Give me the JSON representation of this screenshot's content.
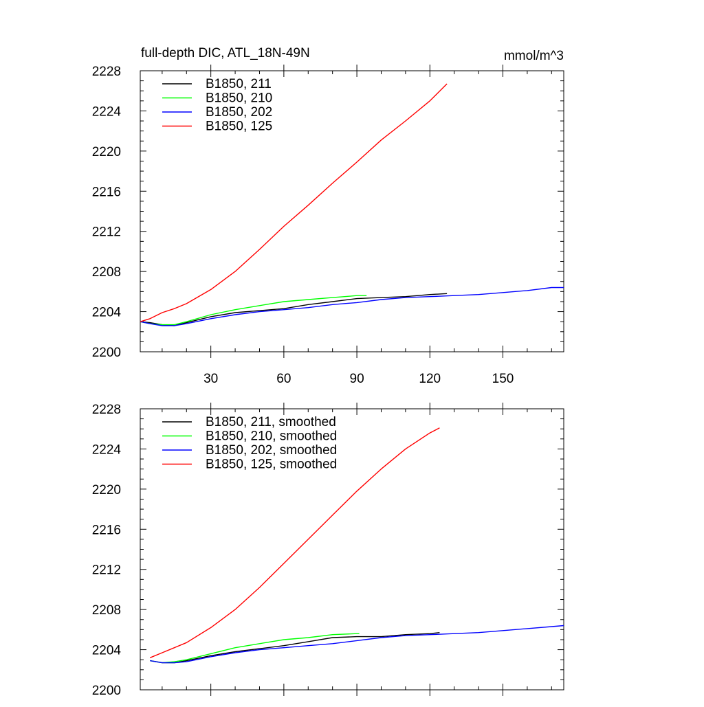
{
  "chart_data": [
    {
      "type": "line",
      "title": "full-depth DIC, ATL_18N-49N",
      "unit_label": "mmol/m^3",
      "xlabel": "",
      "ylabel": "",
      "xlim": [
        1,
        175
      ],
      "ylim": [
        2200,
        2228
      ],
      "x_ticks": [
        30,
        60,
        90,
        120,
        150
      ],
      "y_ticks": [
        2200,
        2204,
        2208,
        2212,
        2216,
        2220,
        2224,
        2228
      ],
      "legend_position": "top-left",
      "grid": false,
      "series": [
        {
          "name": "B1850, 211",
          "color": "#000000",
          "x": [
            1,
            5,
            10,
            15,
            20,
            30,
            40,
            50,
            60,
            70,
            80,
            90,
            100,
            110,
            120,
            127
          ],
          "y": [
            2203.0,
            2202.9,
            2202.7,
            2202.6,
            2202.9,
            2203.5,
            2203.9,
            2204.1,
            2204.3,
            2204.7,
            2205.0,
            2205.3,
            2205.4,
            2205.5,
            2205.7,
            2205.8
          ]
        },
        {
          "name": "B1850, 210",
          "color": "#00ff00",
          "x": [
            1,
            5,
            10,
            15,
            20,
            30,
            40,
            50,
            60,
            70,
            80,
            85,
            90,
            94
          ],
          "y": [
            2203.0,
            2202.8,
            2202.7,
            2202.7,
            2203.0,
            2203.7,
            2204.2,
            2204.6,
            2205.0,
            2205.2,
            2205.4,
            2205.5,
            2205.6,
            2205.6
          ]
        },
        {
          "name": "B1850, 202",
          "color": "#0000ff",
          "x": [
            1,
            5,
            10,
            15,
            20,
            30,
            40,
            50,
            60,
            70,
            80,
            90,
            100,
            110,
            120,
            130,
            140,
            150,
            160,
            170,
            175
          ],
          "y": [
            2203.0,
            2202.8,
            2202.6,
            2202.6,
            2202.8,
            2203.3,
            2203.7,
            2204.0,
            2204.2,
            2204.4,
            2204.7,
            2204.9,
            2205.2,
            2205.4,
            2205.5,
            2205.6,
            2205.7,
            2205.9,
            2206.1,
            2206.4,
            2206.4
          ]
        },
        {
          "name": "B1850, 125",
          "color": "#ff0000",
          "x": [
            1,
            5,
            10,
            15,
            20,
            30,
            40,
            50,
            60,
            70,
            80,
            90,
            100,
            110,
            120,
            127
          ],
          "y": [
            2203.0,
            2203.3,
            2203.9,
            2204.3,
            2204.8,
            2206.2,
            2208.0,
            2210.2,
            2212.5,
            2214.6,
            2216.8,
            2218.9,
            2221.1,
            2223.0,
            2225.0,
            2226.7
          ]
        }
      ]
    },
    {
      "type": "line",
      "title": "",
      "xlabel": "",
      "ylabel": "",
      "xlim": [
        1,
        175
      ],
      "ylim": [
        2200,
        2228
      ],
      "x_ticks": [
        30,
        60,
        90,
        120,
        150
      ],
      "y_ticks": [
        2200,
        2204,
        2208,
        2212,
        2216,
        2220,
        2224,
        2228
      ],
      "legend_position": "top-left",
      "grid": false,
      "series": [
        {
          "name": "B1850, 211, smoothed",
          "color": "#000000",
          "x": [
            5,
            10,
            15,
            20,
            30,
            40,
            50,
            60,
            70,
            80,
            90,
            100,
            110,
            120,
            124
          ],
          "y": [
            2202.9,
            2202.7,
            2202.7,
            2202.9,
            2203.4,
            2203.8,
            2204.1,
            2204.4,
            2204.8,
            2205.2,
            2205.3,
            2205.3,
            2205.5,
            2205.6,
            2205.7
          ]
        },
        {
          "name": "B1850, 210, smoothed",
          "color": "#00ff00",
          "x": [
            5,
            10,
            15,
            20,
            30,
            40,
            50,
            60,
            70,
            80,
            90,
            91
          ],
          "y": [
            2202.9,
            2202.7,
            2202.8,
            2203.0,
            2203.6,
            2204.2,
            2204.6,
            2205.0,
            2205.2,
            2205.5,
            2205.6,
            2205.6
          ]
        },
        {
          "name": "B1850, 202, smoothed",
          "color": "#0000ff",
          "x": [
            5,
            10,
            15,
            20,
            30,
            40,
            50,
            60,
            70,
            80,
            90,
            100,
            110,
            120,
            130,
            140,
            150,
            160,
            170,
            175
          ],
          "y": [
            2202.9,
            2202.7,
            2202.7,
            2202.8,
            2203.3,
            2203.7,
            2204.0,
            2204.2,
            2204.4,
            2204.6,
            2204.9,
            2205.2,
            2205.4,
            2205.5,
            2205.6,
            2205.7,
            2205.9,
            2206.1,
            2206.3,
            2206.4
          ]
        },
        {
          "name": "B1850, 125, smoothed",
          "color": "#ff0000",
          "x": [
            5,
            10,
            15,
            20,
            30,
            40,
            50,
            60,
            70,
            80,
            90,
            100,
            110,
            120,
            124
          ],
          "y": [
            2203.2,
            2203.7,
            2204.2,
            2204.7,
            2206.2,
            2208.0,
            2210.2,
            2212.6,
            2215.0,
            2217.4,
            2219.8,
            2222.0,
            2224.0,
            2225.6,
            2226.1
          ]
        }
      ]
    }
  ]
}
